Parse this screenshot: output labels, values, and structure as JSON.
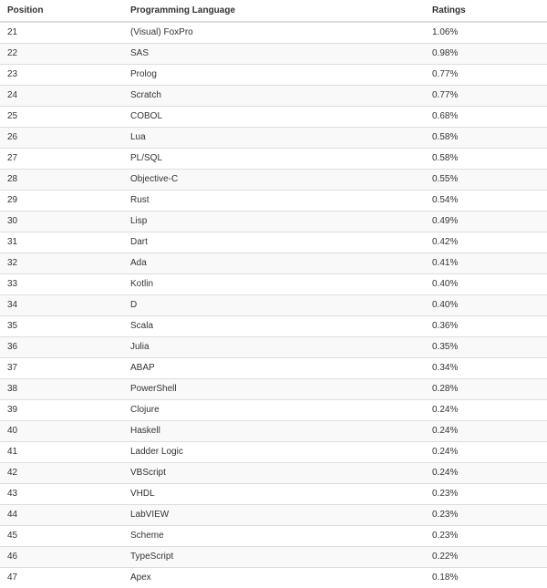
{
  "table": {
    "headers": [
      "Position",
      "Programming Language",
      "Ratings"
    ],
    "rows": [
      [
        "21",
        "(Visual) FoxPro",
        "1.06%"
      ],
      [
        "22",
        "SAS",
        "0.98%"
      ],
      [
        "23",
        "Prolog",
        "0.77%"
      ],
      [
        "24",
        "Scratch",
        "0.77%"
      ],
      [
        "25",
        "COBOL",
        "0.68%"
      ],
      [
        "26",
        "Lua",
        "0.58%"
      ],
      [
        "27",
        "PL/SQL",
        "0.58%"
      ],
      [
        "28",
        "Objective-C",
        "0.55%"
      ],
      [
        "29",
        "Rust",
        "0.54%"
      ],
      [
        "30",
        "Lisp",
        "0.49%"
      ],
      [
        "31",
        "Dart",
        "0.42%"
      ],
      [
        "32",
        "Ada",
        "0.41%"
      ],
      [
        "33",
        "Kotlin",
        "0.40%"
      ],
      [
        "34",
        "D",
        "0.40%"
      ],
      [
        "35",
        "Scala",
        "0.36%"
      ],
      [
        "36",
        "Julia",
        "0.35%"
      ],
      [
        "37",
        "ABAP",
        "0.34%"
      ],
      [
        "38",
        "PowerShell",
        "0.28%"
      ],
      [
        "39",
        "Clojure",
        "0.24%"
      ],
      [
        "40",
        "Haskell",
        "0.24%"
      ],
      [
        "41",
        "Ladder Logic",
        "0.24%"
      ],
      [
        "42",
        "VBScript",
        "0.24%"
      ],
      [
        "43",
        "VHDL",
        "0.23%"
      ],
      [
        "44",
        "LabVIEW",
        "0.23%"
      ],
      [
        "45",
        "Scheme",
        "0.23%"
      ],
      [
        "46",
        "TypeScript",
        "0.22%"
      ],
      [
        "47",
        "Apex",
        "0.18%"
      ]
    ]
  },
  "colors": {
    "text": "#333333",
    "stripe": "#f9f9f9",
    "border": "#dddddd"
  }
}
